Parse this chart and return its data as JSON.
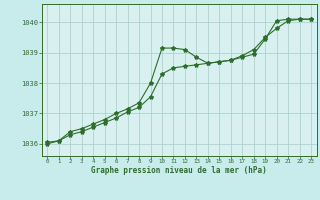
{
  "title": "Graphe pression niveau de la mer (hPa)",
  "background_color": "#c8ecec",
  "plot_bg_color": "#d8f0f0",
  "grid_color": "#a8cccc",
  "line_color": "#2d6e2d",
  "xlim": [
    -0.5,
    23.5
  ],
  "ylim": [
    1035.6,
    1040.6
  ],
  "yticks": [
    1036,
    1037,
    1038,
    1039,
    1040
  ],
  "xticks": [
    0,
    1,
    2,
    3,
    4,
    5,
    6,
    7,
    8,
    9,
    10,
    11,
    12,
    13,
    14,
    15,
    16,
    17,
    18,
    19,
    20,
    21,
    22,
    23
  ],
  "line1_x": [
    0,
    1,
    2,
    3,
    4,
    5,
    6,
    7,
    8,
    9,
    10,
    11,
    12,
    13,
    14,
    15,
    16,
    17,
    18,
    19,
    20,
    21,
    22,
    23
  ],
  "line1_y": [
    1036.05,
    1036.1,
    1036.4,
    1036.5,
    1036.65,
    1036.8,
    1037.0,
    1037.15,
    1037.35,
    1038.0,
    1039.15,
    1039.15,
    1039.1,
    1038.85,
    1038.65,
    1038.7,
    1038.75,
    1038.85,
    1038.95,
    1039.45,
    1040.05,
    1040.1,
    1040.1,
    1040.1
  ],
  "line2_x": [
    0,
    1,
    2,
    3,
    4,
    5,
    6,
    7,
    8,
    9,
    10,
    11,
    12,
    13,
    14,
    15,
    16,
    17,
    18,
    19,
    20,
    21,
    22,
    23
  ],
  "line2_y": [
    1036.0,
    1036.1,
    1036.3,
    1036.4,
    1036.55,
    1036.7,
    1036.85,
    1037.05,
    1037.2,
    1037.55,
    1038.3,
    1038.5,
    1038.55,
    1038.6,
    1038.65,
    1038.7,
    1038.75,
    1038.9,
    1039.1,
    1039.5,
    1039.8,
    1040.05,
    1040.1,
    1040.1
  ],
  "marker": "*",
  "marker_size": 3,
  "linewidth": 0.8,
  "xlabel_fontsize": 5.5,
  "ylabel_fontsize": 5.0,
  "xlabel_tick_fontsize": 4.2,
  "ylabel_tick_fontsize": 5.0
}
